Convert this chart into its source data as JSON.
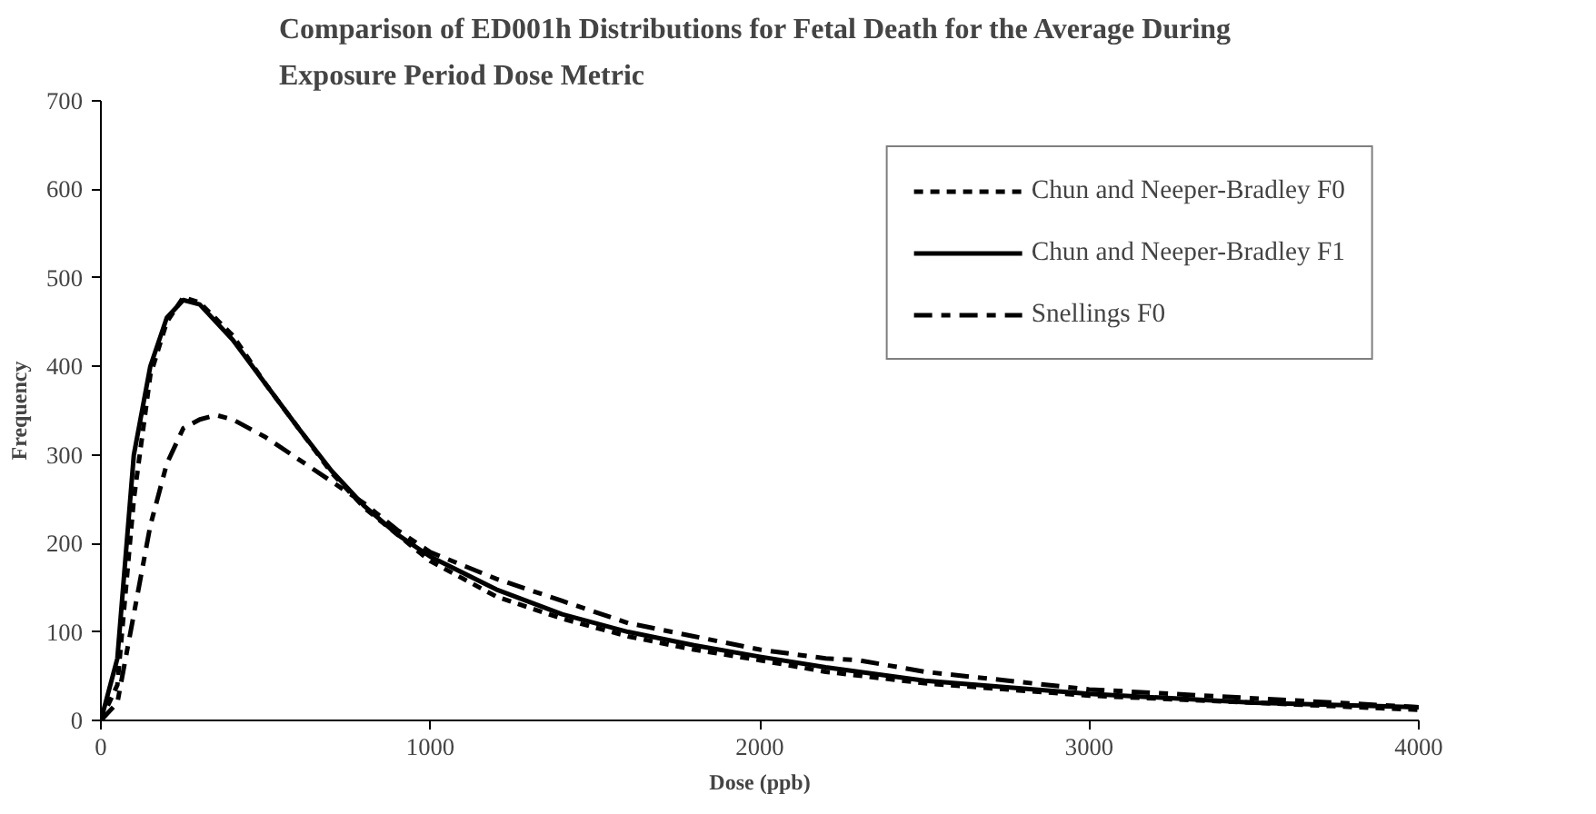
{
  "chart_data": {
    "type": "line",
    "title": "Comparison of ED001h Distributions  for Fetal Death for the Average During Exposure Period Dose Metric",
    "xlabel": "Dose (ppb)",
    "ylabel": "Frequency",
    "xlim": [
      0,
      4000
    ],
    "xticks": [
      0,
      1000,
      2000,
      3000,
      4000
    ],
    "ylim": [
      0,
      700
    ],
    "yticks": [
      0,
      100,
      200,
      300,
      400,
      500,
      600,
      700
    ],
    "grid": false,
    "legend": "top right",
    "series": [
      {
        "name": "Chun and Neeper-Bradley F0",
        "color": "#000000",
        "line_style": "dotted",
        "x": [
          0,
          50,
          100,
          150,
          200,
          250,
          300,
          400,
          500,
          600,
          700,
          800,
          900,
          1000,
          1200,
          1400,
          1600,
          1800,
          2000,
          2200,
          2500,
          3000,
          3500,
          4000
        ],
        "values": [
          0,
          40,
          250,
          390,
          450,
          478,
          472,
          435,
          380,
          330,
          280,
          240,
          210,
          180,
          140,
          115,
          95,
          80,
          68,
          55,
          42,
          28,
          20,
          12
        ]
      },
      {
        "name": "Chun and Neeper-Bradley F1",
        "color": "#000000",
        "line_style": "solid",
        "x": [
          0,
          50,
          100,
          150,
          200,
          250,
          300,
          400,
          500,
          600,
          700,
          800,
          900,
          1000,
          1200,
          1400,
          1600,
          1800,
          2000,
          2200,
          2500,
          3000,
          3500,
          4000
        ],
        "values": [
          0,
          70,
          300,
          400,
          455,
          475,
          470,
          430,
          380,
          330,
          282,
          242,
          210,
          185,
          148,
          120,
          100,
          85,
          72,
          60,
          45,
          30,
          20,
          15
        ]
      },
      {
        "name": "Snellings F0",
        "color": "#000000",
        "line_style": "dashed",
        "x": [
          0,
          50,
          100,
          150,
          200,
          250,
          300,
          350,
          400,
          500,
          600,
          700,
          800,
          900,
          1000,
          1200,
          1400,
          1600,
          1800,
          2000,
          2200,
          2300,
          2500,
          3000,
          3500,
          4000
        ],
        "values": [
          0,
          20,
          120,
          220,
          290,
          330,
          340,
          345,
          340,
          320,
          295,
          270,
          245,
          215,
          190,
          160,
          135,
          110,
          95,
          80,
          70,
          68,
          55,
          35,
          25,
          15
        ]
      }
    ]
  }
}
